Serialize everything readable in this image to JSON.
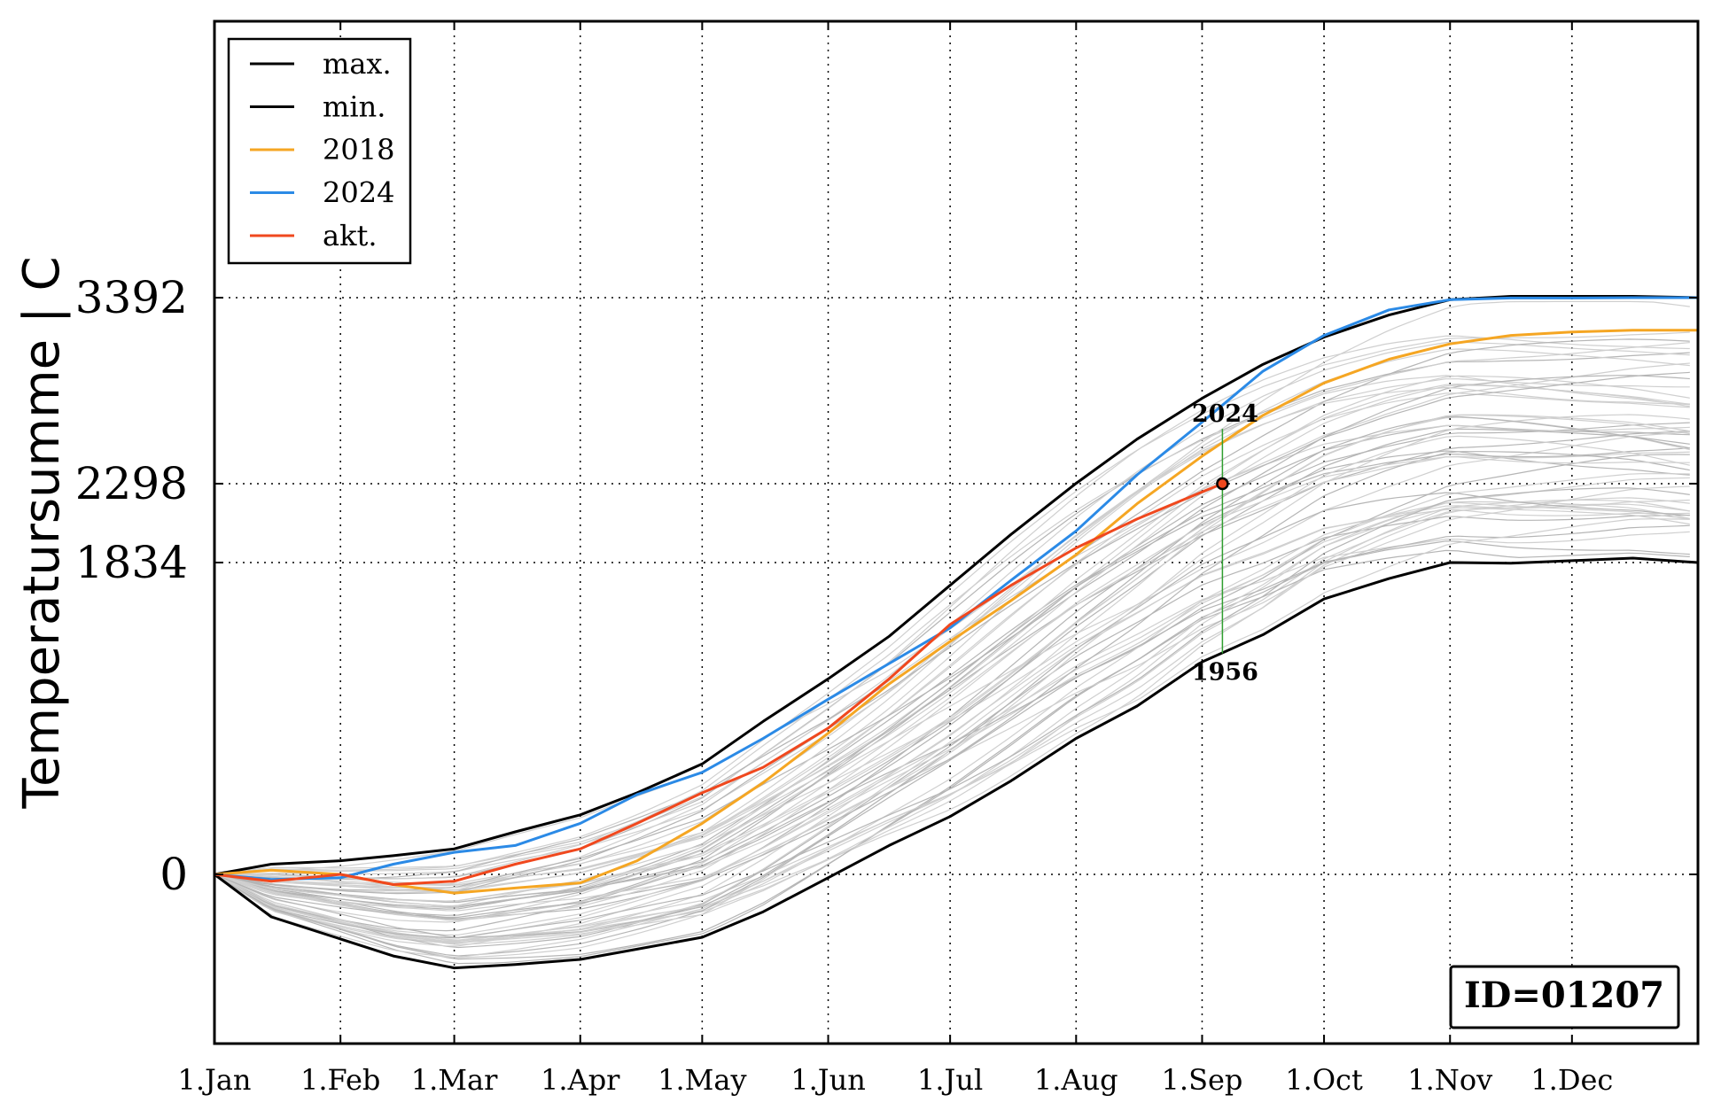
{
  "chart_data": {
    "type": "line",
    "title": "",
    "xlabel": "",
    "ylabel": "Temperatursumme | C",
    "x_ticks": [
      "1.Jan",
      "1.Feb",
      "1.Mar",
      "1.Apr",
      "1.May",
      "1.Jun",
      "1.Jul",
      "1.Aug",
      "1.Sep",
      "1.Oct",
      "1.Nov",
      "1.Dec"
    ],
    "x_tick_days": [
      1,
      32,
      60,
      91,
      121,
      152,
      182,
      213,
      244,
      274,
      305,
      335
    ],
    "xlim": [
      1,
      366
    ],
    "y_ticks": [
      0,
      1834,
      2298,
      3392
    ],
    "ylim": [
      -1000,
      5000
    ],
    "grid": true,
    "legend_position": "top-left",
    "series": [
      {
        "name": "max.",
        "color": "#000000",
        "x": [
          1,
          15,
          32,
          45,
          60,
          75,
          91,
          105,
          121,
          136,
          152,
          167,
          182,
          197,
          213,
          228,
          244,
          259,
          274,
          290,
          305,
          320,
          335,
          350,
          366
        ],
        "values": [
          0,
          60,
          80,
          110,
          150,
          250,
          350,
          480,
          650,
          900,
          1150,
          1400,
          1700,
          2000,
          2300,
          2560,
          2800,
          3000,
          3160,
          3290,
          3380,
          3400,
          3400,
          3400,
          3392
        ]
      },
      {
        "name": "min.",
        "color": "#000000",
        "x": [
          1,
          15,
          32,
          45,
          60,
          75,
          91,
          105,
          121,
          136,
          152,
          167,
          182,
          197,
          213,
          228,
          244,
          259,
          274,
          290,
          305,
          320,
          335,
          350,
          366
        ],
        "values": [
          0,
          -250,
          -380,
          -480,
          -550,
          -530,
          -500,
          -440,
          -370,
          -220,
          -20,
          170,
          340,
          550,
          800,
          990,
          1250,
          1410,
          1620,
          1740,
          1834,
          1830,
          1845,
          1860,
          1834
        ]
      },
      {
        "name": "2018",
        "color": "#f5a623",
        "x": [
          1,
          15,
          32,
          45,
          60,
          75,
          91,
          105,
          121,
          136,
          152,
          167,
          182,
          197,
          213,
          228,
          244,
          259,
          274,
          290,
          305,
          320,
          335,
          350,
          366
        ],
        "values": [
          0,
          25,
          0,
          -60,
          -110,
          -80,
          -50,
          80,
          300,
          540,
          830,
          1120,
          1370,
          1610,
          1880,
          2180,
          2460,
          2700,
          2890,
          3030,
          3120,
          3170,
          3190,
          3200,
          3200
        ]
      },
      {
        "name": "2024",
        "color": "#2b8ae6",
        "x": [
          1,
          15,
          32,
          45,
          60,
          75,
          91,
          105,
          121,
          136,
          152,
          167,
          182,
          197,
          213,
          228,
          244,
          259,
          274,
          290,
          305,
          320,
          335,
          350,
          366
        ],
        "values": [
          0,
          -30,
          -20,
          60,
          130,
          170,
          300,
          470,
          600,
          800,
          1030,
          1240,
          1450,
          1730,
          2020,
          2350,
          2660,
          2960,
          3170,
          3320,
          3380,
          3390,
          3390,
          3392,
          3392
        ]
      },
      {
        "name": "akt.",
        "color": "#f0481e",
        "x": [
          1,
          15,
          32,
          45,
          60,
          75,
          91,
          105,
          121,
          136,
          152,
          167,
          182,
          197,
          213,
          228,
          244,
          249
        ],
        "values": [
          0,
          -40,
          0,
          -60,
          -40,
          60,
          150,
          300,
          480,
          630,
          860,
          1150,
          1470,
          1700,
          1920,
          2090,
          2250,
          2298
        ]
      }
    ],
    "marker": {
      "x": 249,
      "y": 2298,
      "top_label": "2024",
      "bottom_label": "1956",
      "range": [
        1300,
        2620
      ]
    },
    "id_label": "ID=01207"
  }
}
